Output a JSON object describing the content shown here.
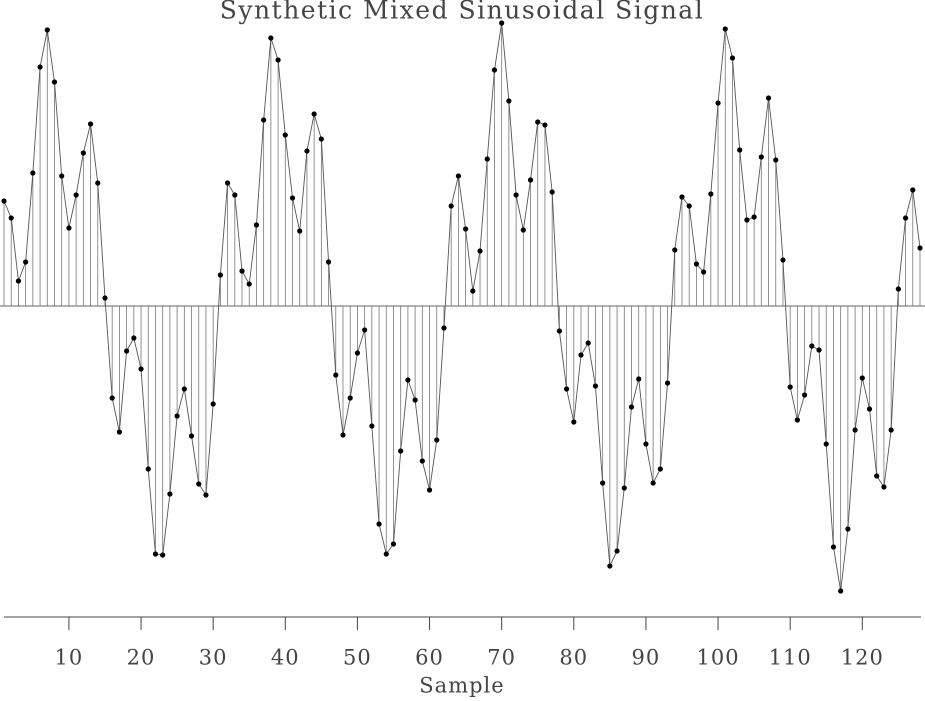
{
  "chart_data": {
    "type": "stem",
    "title": "Synthetic Mixed Sinusoidal Signal",
    "x_label": "Sample",
    "x": [
      1,
      2,
      3,
      4,
      5,
      6,
      7,
      8,
      9,
      10,
      11,
      12,
      13,
      14,
      15,
      16,
      17,
      18,
      19,
      20,
      21,
      22,
      23,
      24,
      25,
      26,
      27,
      28,
      29,
      30,
      31,
      32,
      33,
      34,
      35,
      36,
      37,
      38,
      39,
      40,
      41,
      42,
      43,
      44,
      45,
      46,
      47,
      48,
      49,
      50,
      51,
      52,
      53,
      54,
      55,
      56,
      57,
      58,
      59,
      60,
      61,
      62,
      63,
      64,
      65,
      66,
      67,
      68,
      69,
      70,
      71,
      72,
      73,
      74,
      75,
      76,
      77,
      78,
      79,
      80,
      81,
      82,
      83,
      84,
      85,
      86,
      87,
      88,
      89,
      90,
      91,
      92,
      93,
      94,
      95,
      96,
      97,
      98,
      99,
      100,
      101,
      102,
      103,
      104,
      105,
      106,
      107,
      108,
      109,
      110,
      111,
      112,
      113,
      114,
      115,
      116,
      117,
      118,
      119,
      120,
      121,
      122,
      123,
      124,
      125,
      126,
      127,
      128
    ],
    "values": [
      1.05,
      0.88,
      0.25,
      0.44,
      1.33,
      2.39,
      2.76,
      2.24,
      1.3,
      0.78,
      1.11,
      1.53,
      1.82,
      1.23,
      0.08,
      -0.92,
      -1.26,
      -0.45,
      -0.32,
      -0.63,
      -1.63,
      -2.48,
      -2.49,
      -1.88,
      -1.1,
      -0.83,
      -1.3,
      -1.78,
      -1.89,
      -0.98,
      0.31,
      1.23,
      1.11,
      0.35,
      0.22,
      0.81,
      1.86,
      2.68,
      2.46,
      1.71,
      1.08,
      0.75,
      1.55,
      1.92,
      1.67,
      0.44,
      -0.69,
      -1.29,
      -0.92,
      -0.47,
      -0.24,
      -1.2,
      -2.18,
      -2.48,
      -2.38,
      -1.45,
      -0.74,
      -0.94,
      -1.55,
      -1.84,
      -1.34,
      -0.22,
      1.0,
      1.3,
      0.77,
      0.15,
      0.55,
      1.47,
      2.36,
      2.83,
      2.05,
      1.11,
      0.76,
      1.26,
      1.84,
      1.81,
      1.14,
      -0.25,
      -0.83,
      -1.16,
      -0.49,
      -0.37,
      -0.8,
      -1.77,
      -2.6,
      -2.45,
      -1.82,
      -1.01,
      -0.73,
      -1.38,
      -1.77,
      -1.63,
      -0.77,
      0.56,
      1.09,
      1.0,
      0.42,
      0.34,
      1.12,
      2.03,
      2.77,
      2.48,
      1.56,
      0.86,
      0.89,
      1.49,
      2.08,
      1.46,
      0.46,
      -0.81,
      -1.14,
      -0.89,
      -0.4,
      -0.44,
      -1.38,
      -2.41,
      -2.85,
      -2.23,
      -1.24,
      -0.72,
      -1.03,
      -1.7,
      -1.81,
      -1.24,
      0.17,
      0.88,
      1.16,
      0.58
    ],
    "color": "#000000",
    "xlim": [
      1,
      128
    ],
    "xticks": [
      10,
      20,
      30,
      40,
      50,
      60,
      70,
      80,
      90,
      100,
      110,
      120
    ],
    "ylim": [
      -3.11,
      3.06
    ]
  }
}
